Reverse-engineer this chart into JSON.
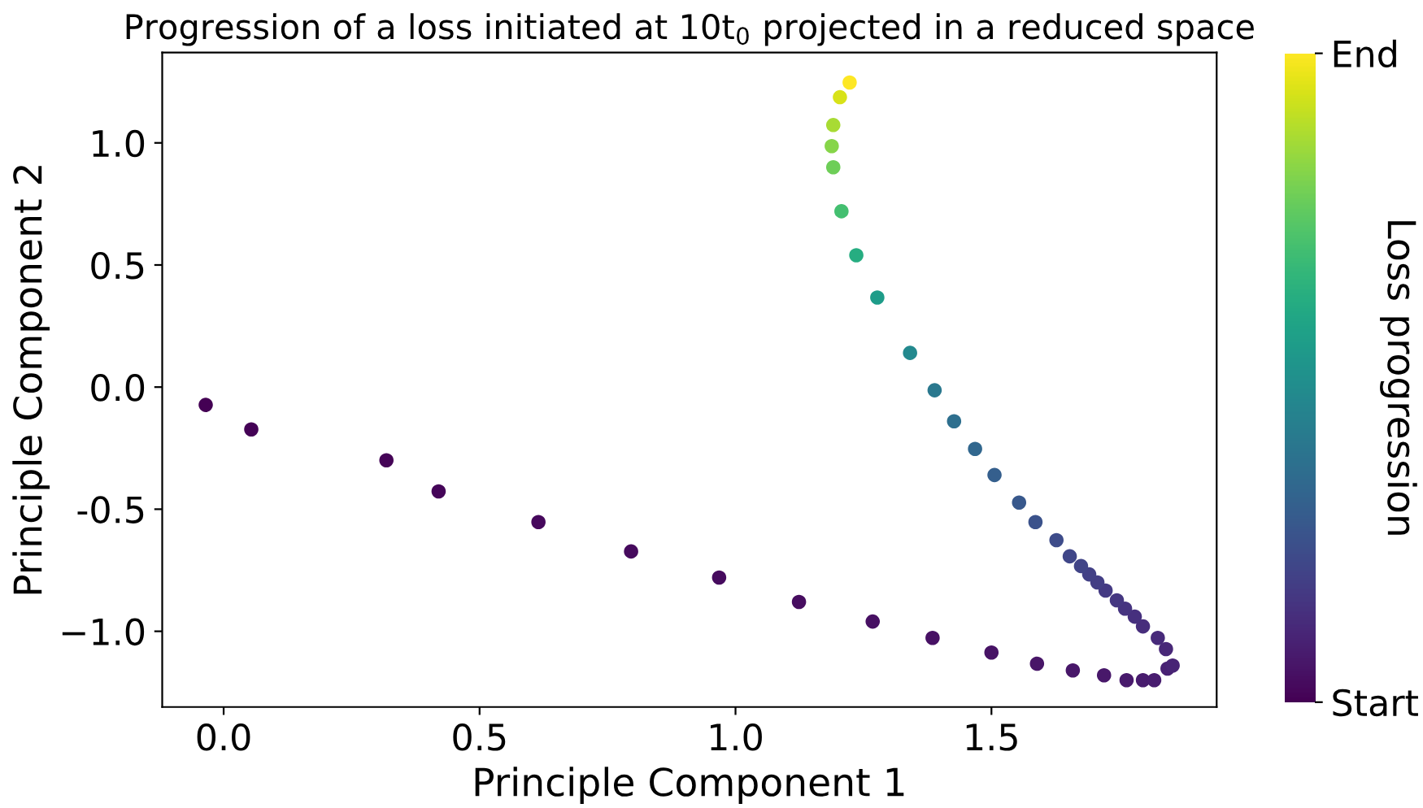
{
  "chart_data": {
    "type": "scatter",
    "title": "Progression of a loss initiated at 10t$_{0}$ projected in a reduced space",
    "xlabel": "Principle Component 1",
    "ylabel": "Principle Component 2",
    "clabel": "Loss progression",
    "x": [
      -0.035,
      0.054,
      0.318,
      0.42,
      0.615,
      0.796,
      0.968,
      1.124,
      1.268,
      1.385,
      1.5,
      1.589,
      1.659,
      1.72,
      1.764,
      1.796,
      1.818,
      1.844,
      1.854,
      1.841,
      1.825,
      1.796,
      1.78,
      1.761,
      1.745,
      1.723,
      1.707,
      1.691,
      1.675,
      1.653,
      1.627,
      1.586,
      1.554,
      1.506,
      1.468,
      1.427,
      1.389,
      1.341,
      1.277,
      1.236,
      1.207,
      1.191,
      1.188,
      1.191,
      1.204,
      1.223
    ],
    "values": [
      -0.073,
      -0.173,
      -0.3,
      -0.427,
      -0.553,
      -0.673,
      -0.78,
      -0.88,
      -0.96,
      -1.027,
      -1.087,
      -1.133,
      -1.16,
      -1.18,
      -1.2,
      -1.2,
      -1.2,
      -1.153,
      -1.14,
      -1.073,
      -1.027,
      -0.98,
      -0.94,
      -0.907,
      -0.873,
      -0.833,
      -0.8,
      -0.767,
      -0.733,
      -0.693,
      -0.627,
      -0.553,
      -0.473,
      -0.36,
      -0.253,
      -0.14,
      -0.013,
      0.14,
      0.367,
      0.54,
      0.72,
      0.9,
      0.987,
      1.073,
      1.187,
      1.247
    ],
    "cvalues": [
      0,
      0.005,
      0.01,
      0.015,
      0.02,
      0.025,
      0.03,
      0.035,
      0.04,
      0.045,
      0.05,
      0.055,
      0.06,
      0.065,
      0.07,
      0.075,
      0.08,
      0.09,
      0.1,
      0.11,
      0.12,
      0.13,
      0.14,
      0.15,
      0.16,
      0.17,
      0.18,
      0.19,
      0.2,
      0.21,
      0.23,
      0.25,
      0.27,
      0.3,
      0.33,
      0.36,
      0.4,
      0.47,
      0.55,
      0.62,
      0.7,
      0.78,
      0.82,
      0.87,
      0.94,
      1.0
    ],
    "xlim": [
      -0.12,
      1.94
    ],
    "ylim": [
      -1.31,
      1.37
    ],
    "xticks": [
      {
        "value": 0,
        "label": "0.0"
      },
      0.5,
      {
        "value": 1,
        "label": "1.0"
      },
      1.5
    ],
    "yticks": [
      {
        "value": -1,
        "label": "−1.0"
      },
      -0.5,
      {
        "value": 0,
        "label": "0.0"
      },
      0.5,
      {
        "value": 1,
        "label": "1.0"
      }
    ],
    "clim": [
      0,
      1
    ],
    "cticks": [
      {
        "value": 0,
        "label": "Start"
      },
      {
        "value": 1,
        "label": "End"
      }
    ],
    "grid": false,
    "marker": "circle"
  }
}
